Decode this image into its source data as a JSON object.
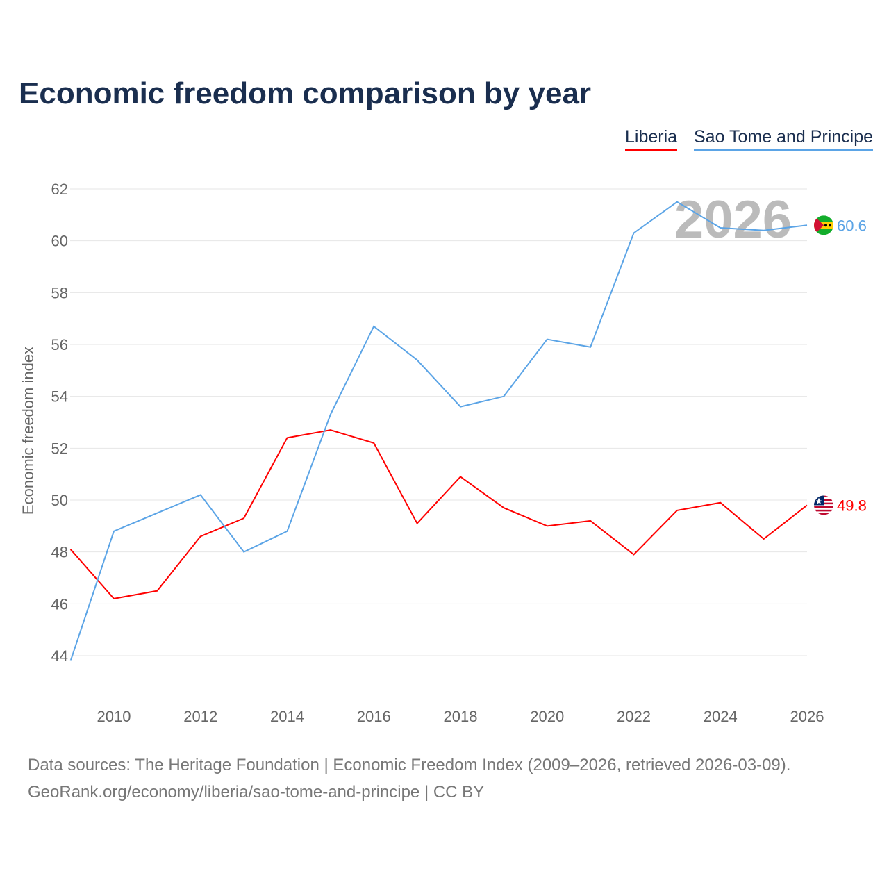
{
  "chart_data": {
    "type": "line",
    "title": "Economic freedom comparison by year",
    "ylabel": "Economic freedom index",
    "xlabel": "",
    "ylim": [
      44,
      62
    ],
    "xlim": [
      2009,
      2026
    ],
    "yticks": [
      44,
      46,
      48,
      50,
      52,
      54,
      56,
      58,
      60,
      62
    ],
    "xticks": [
      2010,
      2012,
      2014,
      2016,
      2018,
      2020,
      2022,
      2024,
      2026
    ],
    "grid": true,
    "legend_placement": "top-right",
    "year_watermark": "2026",
    "x": [
      2009,
      2010,
      2011,
      2012,
      2013,
      2014,
      2015,
      2016,
      2017,
      2018,
      2019,
      2020,
      2021,
      2022,
      2023,
      2024,
      2025,
      2026
    ],
    "series": [
      {
        "name": "Liberia",
        "color": "#ff0000",
        "end_label": "49.8",
        "values": [
          48.1,
          46.2,
          46.5,
          48.6,
          49.3,
          52.4,
          52.7,
          52.2,
          49.1,
          50.9,
          49.7,
          49.0,
          49.2,
          47.9,
          49.6,
          49.9,
          48.5,
          49.8
        ]
      },
      {
        "name": "Sao Tome and Principe",
        "color": "#5ba4e6",
        "end_label": "60.6",
        "values": [
          43.8,
          48.8,
          49.5,
          50.2,
          48.0,
          48.8,
          53.3,
          56.7,
          55.4,
          53.6,
          54.0,
          56.2,
          55.9,
          60.3,
          61.5,
          60.5,
          60.4,
          60.6
        ]
      }
    ]
  },
  "footer": {
    "line1": "Data sources: The Heritage Foundation | Economic Freedom Index (2009–2026, retrieved 2026-03-09).",
    "line2": "GeoRank.org/economy/liberia/sao-tome-and-principe | CC BY"
  }
}
